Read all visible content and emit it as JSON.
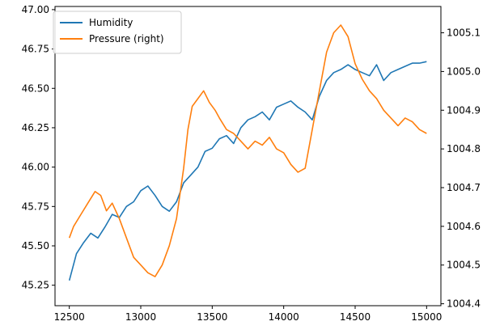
{
  "chart_data": {
    "type": "line",
    "title": "",
    "xlabel": "",
    "ylabel": "",
    "ylabel_right": "",
    "xlim": [
      12400,
      15100
    ],
    "ylim": [
      45.12,
      47.02
    ],
    "ylim_right": [
      1004.395,
      1005.168
    ],
    "x_ticks": [
      12500,
      13000,
      13500,
      14000,
      14500,
      15000
    ],
    "y_ticks_left": [
      45.25,
      45.5,
      45.75,
      46.0,
      46.25,
      46.5,
      46.75,
      47.0
    ],
    "y_ticks_right": [
      1004.4,
      1004.5,
      1004.6,
      1004.7,
      1004.8,
      1004.9,
      1005.0,
      1005.1
    ],
    "legend_position": "top-left",
    "legend": [
      "Humidity",
      "Pressure (right)"
    ],
    "series": [
      {
        "name": "Humidity",
        "axis": "left",
        "color": "#1f77b4",
        "x": [
          12500,
          12550,
          12600,
          12650,
          12700,
          12750,
          12800,
          12850,
          12900,
          12950,
          13000,
          13050,
          13100,
          13150,
          13200,
          13250,
          13300,
          13350,
          13400,
          13450,
          13500,
          13550,
          13600,
          13650,
          13700,
          13750,
          13800,
          13850,
          13900,
          13950,
          14000,
          14050,
          14100,
          14150,
          14200,
          14250,
          14300,
          14350,
          14400,
          14450,
          14500,
          14550,
          14600,
          14650,
          14700,
          14750,
          14800,
          14850,
          14900,
          14950,
          15000
        ],
        "values": [
          45.28,
          45.45,
          45.52,
          45.58,
          45.55,
          45.62,
          45.7,
          45.68,
          45.75,
          45.78,
          45.85,
          45.88,
          45.82,
          45.75,
          45.72,
          45.78,
          45.9,
          45.95,
          46.0,
          46.1,
          46.12,
          46.18,
          46.2,
          46.15,
          46.25,
          46.3,
          46.32,
          46.35,
          46.3,
          46.38,
          46.4,
          46.42,
          46.38,
          46.35,
          46.3,
          46.45,
          46.55,
          46.6,
          46.62,
          46.65,
          46.62,
          46.6,
          46.58,
          46.65,
          46.55,
          46.6,
          46.62,
          46.64,
          46.66,
          46.66,
          46.67
        ]
      },
      {
        "name": "Pressure (right)",
        "axis": "right",
        "color": "#ff7f0e",
        "x": [
          12500,
          12530,
          12580,
          12630,
          12680,
          12720,
          12760,
          12800,
          12850,
          12900,
          12950,
          13000,
          13050,
          13100,
          13150,
          13200,
          13250,
          13300,
          13330,
          13360,
          13400,
          13440,
          13480,
          13520,
          13550,
          13600,
          13650,
          13700,
          13750,
          13800,
          13850,
          13900,
          13950,
          14000,
          14050,
          14100,
          14150,
          14200,
          14250,
          14300,
          14350,
          14400,
          14450,
          14500,
          14550,
          14600,
          14650,
          14700,
          14750,
          14800,
          14850,
          14900,
          14950,
          15000
        ],
        "values": [
          1004.57,
          1004.6,
          1004.63,
          1004.66,
          1004.69,
          1004.68,
          1004.64,
          1004.66,
          1004.62,
          1004.57,
          1004.52,
          1004.5,
          1004.48,
          1004.47,
          1004.5,
          1004.55,
          1004.62,
          1004.75,
          1004.85,
          1004.91,
          1004.93,
          1004.95,
          1004.92,
          1004.9,
          1004.88,
          1004.85,
          1004.84,
          1004.82,
          1004.8,
          1004.82,
          1004.81,
          1004.83,
          1004.8,
          1004.79,
          1004.76,
          1004.74,
          1004.75,
          1004.85,
          1004.95,
          1005.05,
          1005.1,
          1005.12,
          1005.09,
          1005.02,
          1004.98,
          1004.95,
          1004.93,
          1004.9,
          1004.88,
          1004.86,
          1004.88,
          1004.87,
          1004.85,
          1004.84
        ]
      }
    ]
  }
}
